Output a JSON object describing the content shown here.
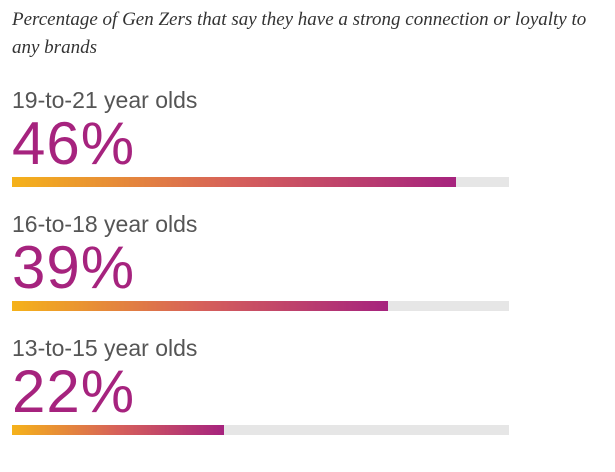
{
  "chart_data": {
    "type": "bar",
    "orientation": "horizontal",
    "title": "Percentage of Gen Zers that say they have a strong connection or loyalty to any brands",
    "categories": [
      "19-to-21 year olds",
      "16-to-18 year olds",
      "13-to-15 year olds"
    ],
    "values": [
      46,
      39,
      22
    ],
    "value_labels": [
      "46%",
      "39%",
      "22%"
    ],
    "unit": "%",
    "ylim": [
      0,
      51.5
    ],
    "grid": false,
    "legend": "none",
    "colors": {
      "gradient_start": "#f5b21a",
      "gradient_mid": "#d6605a",
      "gradient_end": "#a6237e",
      "track": "#e6e6e6",
      "value_text": "#a6237e",
      "label_text": "#555555"
    }
  }
}
